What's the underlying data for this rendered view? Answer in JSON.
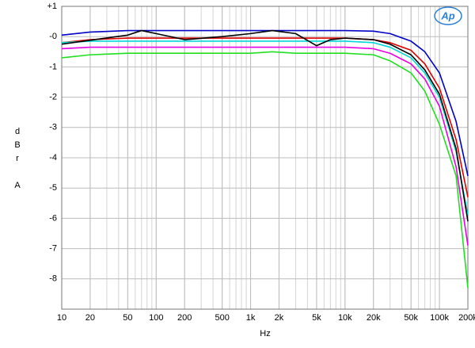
{
  "chart_data": {
    "type": "line",
    "xscale": "log",
    "grid": true,
    "xlabel": "Hz",
    "ylabel": "dBr A",
    "logo": "Ap",
    "xlim": [
      10,
      200000
    ],
    "ylim": [
      -9,
      1
    ],
    "xticks": [
      10,
      20,
      50,
      100,
      200,
      500,
      {
        "value": 1000,
        "label": "1k"
      },
      {
        "value": 2000,
        "label": "2k"
      },
      {
        "value": 5000,
        "label": "5k"
      },
      {
        "value": 10000,
        "label": "10k"
      },
      {
        "value": 20000,
        "label": "20k"
      },
      {
        "value": 50000,
        "label": "50k"
      },
      {
        "value": 100000,
        "label": "100k"
      },
      {
        "value": 200000,
        "label": "200k"
      }
    ],
    "yticks": [
      {
        "value": 1,
        "label": "+1"
      },
      {
        "value": 0,
        "label": "-0"
      },
      -1,
      -2,
      -3,
      -4,
      -5,
      -6,
      -7,
      -8
    ],
    "x": [
      10,
      20,
      50,
      70,
      100,
      200,
      500,
      1000,
      1700,
      3000,
      5000,
      7000,
      10000,
      20000,
      30000,
      50000,
      70000,
      100000,
      150000,
      200000
    ],
    "series": [
      {
        "color": "#0000c8",
        "values": [
          0.05,
          0.15,
          0.2,
          0.2,
          0.2,
          0.2,
          0.2,
          0.2,
          0.2,
          0.2,
          0.2,
          0.2,
          0.2,
          0.18,
          0.1,
          -0.15,
          -0.5,
          -1.2,
          -2.8,
          -4.6
        ]
      },
      {
        "color": "#e00000",
        "values": [
          -0.2,
          -0.1,
          -0.05,
          -0.05,
          -0.05,
          -0.05,
          -0.05,
          -0.05,
          -0.05,
          -0.05,
          -0.05,
          -0.05,
          -0.05,
          -0.1,
          -0.2,
          -0.45,
          -0.9,
          -1.7,
          -3.4,
          -5.3
        ]
      },
      {
        "color": "#00d8d8",
        "values": [
          -0.2,
          -0.15,
          -0.15,
          -0.15,
          -0.15,
          -0.15,
          -0.15,
          -0.15,
          -0.15,
          -0.15,
          -0.15,
          -0.15,
          -0.15,
          -0.2,
          -0.35,
          -0.7,
          -1.2,
          -2.0,
          -3.8,
          -5.9
        ]
      },
      {
        "color": "#e800e8",
        "values": [
          -0.4,
          -0.35,
          -0.35,
          -0.35,
          -0.35,
          -0.35,
          -0.35,
          -0.35,
          -0.35,
          -0.35,
          -0.35,
          -0.35,
          -0.35,
          -0.4,
          -0.55,
          -0.9,
          -1.4,
          -2.3,
          -4.3,
          -6.9
        ]
      },
      {
        "color": "#20e020",
        "values": [
          -0.7,
          -0.6,
          -0.55,
          -0.55,
          -0.55,
          -0.55,
          -0.55,
          -0.55,
          -0.5,
          -0.55,
          -0.55,
          -0.55,
          -0.55,
          -0.6,
          -0.8,
          -1.2,
          -1.8,
          -2.9,
          -4.6,
          -8.3
        ]
      },
      {
        "color": "#000000",
        "values": [
          -0.25,
          -0.12,
          0.05,
          0.2,
          0.1,
          -0.1,
          0.0,
          0.1,
          0.2,
          0.1,
          -0.3,
          -0.1,
          -0.05,
          -0.1,
          -0.25,
          -0.6,
          -1.1,
          -1.9,
          -3.7,
          -6.1
        ]
      }
    ]
  }
}
